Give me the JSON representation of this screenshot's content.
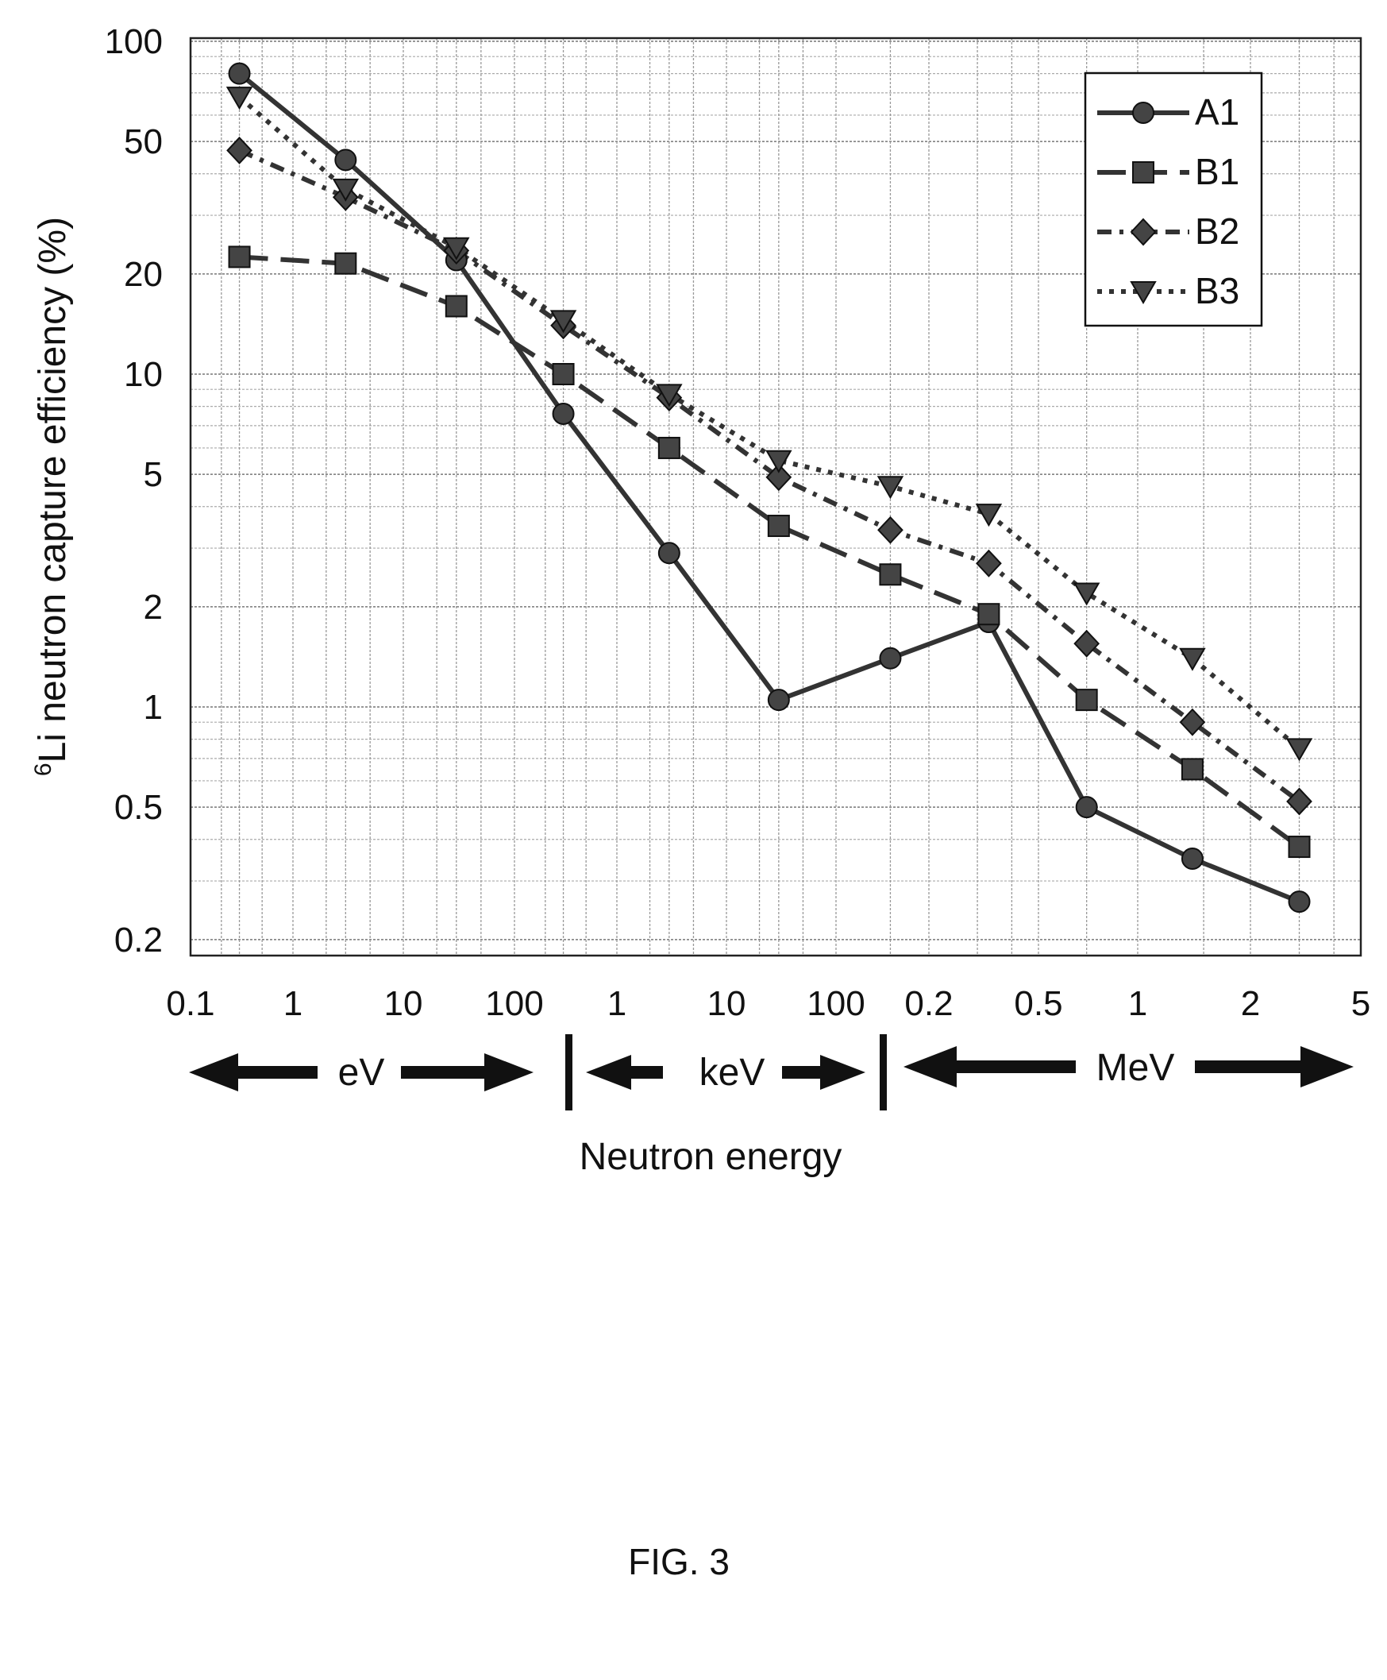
{
  "figure": {
    "caption": "FIG. 3"
  },
  "chart_data": {
    "type": "line",
    "ylabel_superscript": "6",
    "ylabel": "Li neutron capture efficiency (%)",
    "xlabel": "Neutron energy",
    "y_scale": "log",
    "ylim": [
      0.15,
      100
    ],
    "y_ticks": [
      "100",
      "50",
      "20",
      "10",
      "5",
      "2",
      "1",
      "0.5",
      "0.2"
    ],
    "y_tick_values": [
      100,
      50,
      20,
      10,
      5,
      2,
      1,
      0.5,
      0.2
    ],
    "x_scale": "log",
    "x_ticks": [
      "0.1",
      "1",
      "10",
      "100",
      "1",
      "10",
      "100",
      "0.2",
      "0.5",
      "1",
      "2",
      "5"
    ],
    "x_tick_values_eV": [
      0.1,
      1,
      10,
      100,
      1000,
      10000,
      100000,
      200000,
      500000,
      1000000,
      2000000,
      5000000
    ],
    "x_unit_ranges": [
      "eV",
      "keV",
      "MeV"
    ],
    "x_eV": [
      0.3,
      3,
      30,
      300,
      3000,
      30000,
      150000,
      330000,
      700000,
      1400000,
      3000000
    ],
    "grid": true,
    "legend_position": "top-right",
    "series": [
      {
        "name": "A1",
        "marker": "circle",
        "dash": "solid",
        "values": [
          80,
          44,
          22,
          7.6,
          2.9,
          1.05,
          1.4,
          1.8,
          0.5,
          0.35,
          0.26
        ]
      },
      {
        "name": "B1",
        "marker": "square",
        "dash": "long-dash",
        "values": [
          22.5,
          21.5,
          16,
          10,
          6,
          3.5,
          2.5,
          1.9,
          1.05,
          0.65,
          0.38
        ]
      },
      {
        "name": "B2",
        "marker": "diamond",
        "dash": "dash-dot",
        "values": [
          47,
          34,
          23.5,
          14,
          8.5,
          4.9,
          3.4,
          2.7,
          1.55,
          0.9,
          0.52
        ]
      },
      {
        "name": "B3",
        "marker": "triangle-down",
        "dash": "dotted",
        "values": [
          68,
          36,
          24,
          14.5,
          8.7,
          5.5,
          4.6,
          3.8,
          2.2,
          1.4,
          0.75
        ]
      }
    ]
  }
}
